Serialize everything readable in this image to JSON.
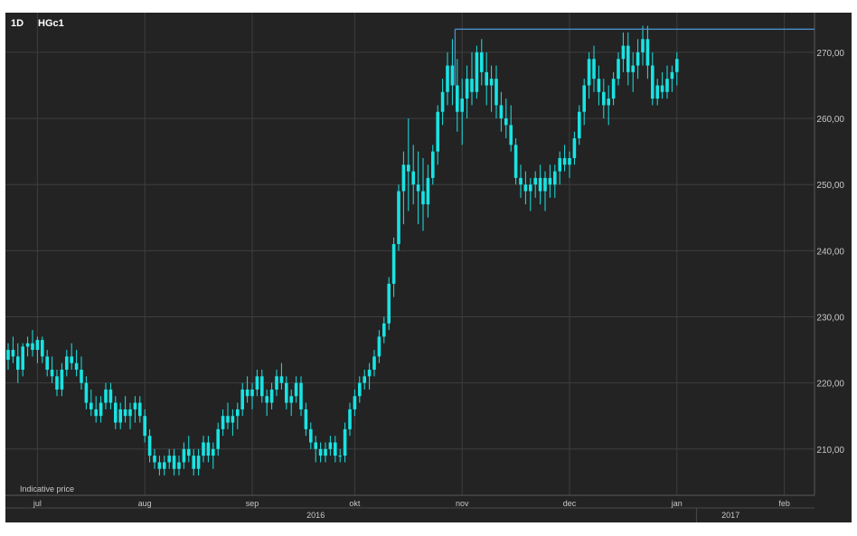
{
  "header": {
    "interval": "1D",
    "symbol": "HGc1"
  },
  "note": "Indicative price",
  "colors": {
    "background": "#232323",
    "candle": "#19e3e3",
    "grid": "#3e3e3e",
    "resistance": "#4a8ec8",
    "axis_text": "#c8c8c8"
  },
  "chart_data": {
    "type": "candlestick",
    "title": "",
    "xlabel": "",
    "ylabel": "",
    "ylim": [
      203,
      276
    ],
    "y_ticks": [
      "210,00",
      "220,00",
      "230,00",
      "240,00",
      "250,00",
      "260,00",
      "270,00"
    ],
    "y_tick_values": [
      210,
      220,
      230,
      240,
      250,
      260,
      270
    ],
    "month_labels": [
      {
        "label": "jul",
        "index": 6
      },
      {
        "label": "aug",
        "index": 28
      },
      {
        "label": "sep",
        "index": 50
      },
      {
        "label": "okt",
        "index": 71
      },
      {
        "label": "nov",
        "index": 93
      },
      {
        "label": "dec",
        "index": 115
      },
      {
        "label": "jan",
        "index": 137
      },
      {
        "label": "feb",
        "index": 159
      }
    ],
    "year_labels": [
      {
        "label": "2016",
        "index": 63
      },
      {
        "label": "2017",
        "index": 148
      }
    ],
    "year_boundary_index": 141,
    "resistance": {
      "value": 273.5,
      "from_index": 91
    },
    "candles": [
      [
        223.5,
        226,
        222,
        225
      ],
      [
        225,
        227,
        223,
        224
      ],
      [
        224,
        226,
        220,
        222
      ],
      [
        222,
        226,
        221,
        225.5
      ],
      [
        225.5,
        227,
        224,
        226
      ],
      [
        226,
        228,
        224,
        225
      ],
      [
        225,
        227,
        223,
        226.5
      ],
      [
        226.5,
        227,
        223,
        224
      ],
      [
        224,
        225,
        221,
        222
      ],
      [
        222,
        224,
        220,
        221
      ],
      [
        221,
        222,
        218,
        219
      ],
      [
        219,
        223,
        218,
        222
      ],
      [
        222,
        225,
        221,
        224
      ],
      [
        224,
        226,
        222,
        223
      ],
      [
        223,
        225,
        221,
        222
      ],
      [
        222,
        224,
        219,
        220
      ],
      [
        220,
        221,
        216,
        217
      ],
      [
        217,
        219,
        215,
        216
      ],
      [
        216,
        218,
        214,
        215
      ],
      [
        215,
        218,
        214,
        217
      ],
      [
        217,
        220,
        216,
        219
      ],
      [
        219,
        220,
        216,
        217
      ],
      [
        217,
        218,
        213,
        214
      ],
      [
        214,
        217,
        213,
        216
      ],
      [
        216,
        218,
        214,
        215
      ],
      [
        215,
        217,
        213,
        216
      ],
      [
        216,
        218,
        214,
        217
      ],
      [
        217,
        218,
        214,
        215
      ],
      [
        215,
        216,
        211,
        212
      ],
      [
        212,
        213,
        208,
        209
      ],
      [
        209,
        210,
        207,
        208
      ],
      [
        208,
        209,
        206,
        207
      ],
      [
        207,
        209,
        206,
        208
      ],
      [
        208,
        210,
        207,
        209
      ],
      [
        209,
        210,
        206,
        207
      ],
      [
        207,
        209,
        206,
        208
      ],
      [
        208,
        211,
        207,
        210
      ],
      [
        210,
        212,
        208,
        209
      ],
      [
        209,
        210,
        206,
        207
      ],
      [
        207,
        210,
        206,
        209
      ],
      [
        209,
        212,
        208,
        211
      ],
      [
        211,
        212,
        208,
        209
      ],
      [
        209,
        211,
        207,
        210
      ],
      [
        210,
        214,
        209,
        213
      ],
      [
        213,
        216,
        212,
        215
      ],
      [
        215,
        217,
        213,
        214
      ],
      [
        214,
        216,
        212,
        215
      ],
      [
        215,
        217,
        213,
        216
      ],
      [
        216,
        220,
        215,
        219
      ],
      [
        219,
        221,
        217,
        218
      ],
      [
        218,
        220,
        216,
        219
      ],
      [
        219,
        222,
        218,
        221
      ],
      [
        221,
        222,
        217,
        218
      ],
      [
        218,
        219,
        215,
        217
      ],
      [
        217,
        220,
        216,
        219
      ],
      [
        219,
        222,
        218,
        221
      ],
      [
        221,
        223,
        219,
        220
      ],
      [
        220,
        221,
        216,
        217
      ],
      [
        217,
        219,
        215,
        218
      ],
      [
        218,
        221,
        217,
        220
      ],
      [
        220,
        221,
        215,
        216
      ],
      [
        216,
        217,
        212,
        213
      ],
      [
        213,
        214,
        210,
        211
      ],
      [
        211,
        212,
        208,
        210
      ],
      [
        210,
        211,
        208,
        209
      ],
      [
        209,
        211,
        208,
        210
      ],
      [
        210,
        212,
        209,
        211
      ],
      [
        211,
        212,
        208,
        209
      ],
      [
        209,
        210,
        208,
        209
      ],
      [
        209,
        214,
        208,
        213
      ],
      [
        213,
        217,
        212,
        216
      ],
      [
        216,
        219,
        215,
        218
      ],
      [
        218,
        221,
        217,
        220
      ],
      [
        220,
        222,
        219,
        221
      ],
      [
        221,
        223,
        219,
        222
      ],
      [
        222,
        225,
        221,
        224
      ],
      [
        224,
        228,
        223,
        227
      ],
      [
        227,
        230,
        226,
        229
      ],
      [
        229,
        236,
        228,
        235
      ],
      [
        235,
        242,
        233,
        241
      ],
      [
        241,
        250,
        240,
        249
      ],
      [
        249,
        255,
        244,
        253
      ],
      [
        253,
        260,
        246,
        252
      ],
      [
        252,
        256,
        247,
        250
      ],
      [
        250,
        255,
        244,
        249
      ],
      [
        249,
        254,
        243,
        247
      ],
      [
        247,
        253,
        245,
        251
      ],
      [
        251,
        256,
        250,
        255
      ],
      [
        255,
        262,
        253,
        261
      ],
      [
        261,
        266,
        259,
        264
      ],
      [
        264,
        270,
        262,
        268
      ],
      [
        268,
        272,
        262,
        265
      ],
      [
        265,
        269,
        258,
        261
      ],
      [
        261,
        266,
        256,
        263
      ],
      [
        263,
        268,
        260,
        266
      ],
      [
        266,
        270,
        262,
        264
      ],
      [
        264,
        271,
        263,
        270
      ],
      [
        270,
        272,
        265,
        267
      ],
      [
        267,
        270,
        262,
        265
      ],
      [
        265,
        268,
        261,
        266
      ],
      [
        266,
        268,
        260,
        262
      ],
      [
        262,
        264,
        258,
        260
      ],
      [
        260,
        263,
        257,
        259
      ],
      [
        259,
        262,
        255,
        256
      ],
      [
        256,
        257,
        250,
        251
      ],
      [
        251,
        253,
        248,
        250
      ],
      [
        250,
        252,
        247,
        249
      ],
      [
        249,
        251,
        246,
        250
      ],
      [
        250,
        252,
        248,
        251
      ],
      [
        251,
        253,
        247,
        249
      ],
      [
        249,
        252,
        246,
        251
      ],
      [
        251,
        253,
        248,
        250
      ],
      [
        250,
        253,
        248,
        252
      ],
      [
        252,
        255,
        250,
        254
      ],
      [
        254,
        256,
        252,
        253
      ],
      [
        253,
        255,
        251,
        254
      ],
      [
        254,
        258,
        253,
        257
      ],
      [
        257,
        262,
        256,
        261
      ],
      [
        261,
        266,
        259,
        265
      ],
      [
        265,
        270,
        263,
        269
      ],
      [
        269,
        271,
        264,
        266
      ],
      [
        266,
        268,
        262,
        264
      ],
      [
        264,
        266,
        260,
        262
      ],
      [
        262,
        265,
        259,
        263
      ],
      [
        263,
        267,
        262,
        266
      ],
      [
        266,
        270,
        265,
        269
      ],
      [
        269,
        273,
        267,
        271
      ],
      [
        271,
        273,
        265,
        267
      ],
      [
        267,
        270,
        264,
        268
      ],
      [
        268,
        272,
        266,
        270
      ],
      [
        270,
        274,
        268,
        272
      ],
      [
        272,
        274,
        266,
        268
      ],
      [
        268,
        270,
        262,
        263
      ],
      [
        263,
        266,
        262,
        265
      ],
      [
        265,
        267,
        263,
        264
      ],
      [
        264,
        268,
        263,
        266
      ],
      [
        266,
        268,
        264,
        267
      ],
      [
        267,
        270,
        265,
        269
      ]
    ]
  }
}
